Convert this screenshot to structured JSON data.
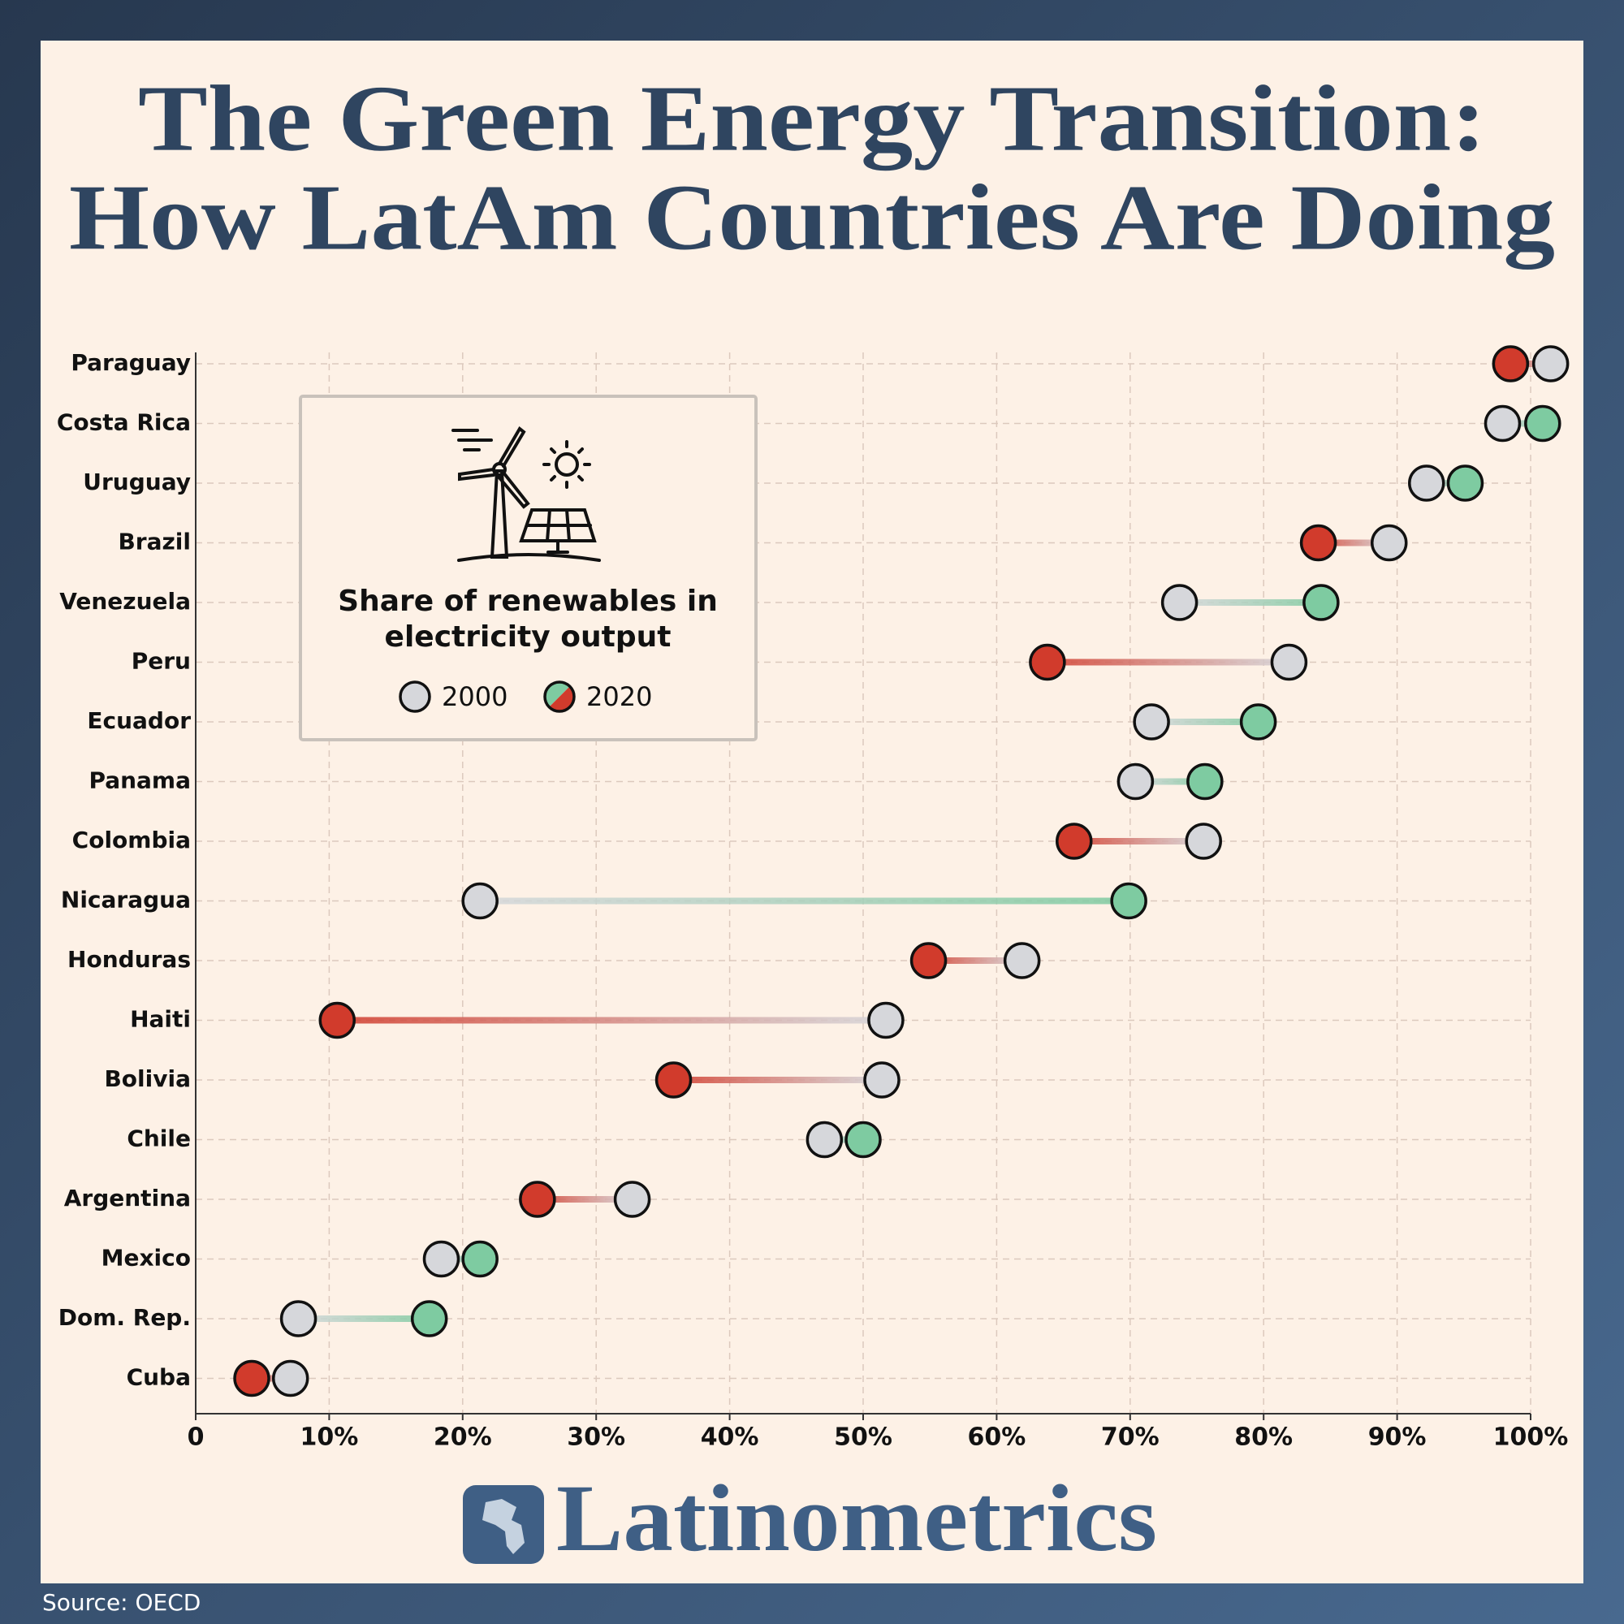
{
  "chart_data": {
    "type": "dumbbell",
    "title_lines": [
      "The Green Energy Transition:",
      "How LatAm Countries Are Doing"
    ],
    "categories": [
      "Paraguay",
      "Costa Rica",
      "Uruguay",
      "Brazil",
      "Venezuela",
      "Peru",
      "Ecuador",
      "Panama",
      "Colombia",
      "Nicaragua",
      "Honduras",
      "Haiti",
      "Bolivia",
      "Chile",
      "Argentina",
      "Mexico",
      "Dom. Rep.",
      "Cuba"
    ],
    "series": [
      {
        "name": "2000",
        "color": "#d6d7db",
        "values": [
          101.5,
          97.9,
          92.2,
          89.4,
          73.7,
          81.9,
          71.6,
          70.4,
          75.5,
          21.3,
          61.9,
          51.7,
          51.4,
          47.1,
          32.7,
          18.4,
          7.7,
          7.1
        ]
      },
      {
        "name": "2020",
        "color": "#7ecba1",
        "decline_color": "#d13b2c",
        "values": [
          98.5,
          100.9,
          95.1,
          84.1,
          84.3,
          63.8,
          79.6,
          75.6,
          65.8,
          69.9,
          54.9,
          10.6,
          35.8,
          50.0,
          25.6,
          21.3,
          17.5,
          4.2
        ]
      }
    ],
    "xlim": [
      0,
      100
    ],
    "xticks": [
      0,
      {
        "value": 10,
        "label": "10%"
      },
      {
        "value": 20,
        "label": "20%"
      },
      {
        "value": 30,
        "label": "30%"
      },
      {
        "value": 40,
        "label": "40%"
      },
      {
        "value": 50,
        "label": "50%"
      },
      {
        "value": 60,
        "label": "60%"
      },
      {
        "value": 70,
        "label": "70%"
      },
      {
        "value": 80,
        "label": "80%"
      },
      {
        "value": 90,
        "label": "90%"
      },
      {
        "value": 100,
        "label": "100%"
      }
    ],
    "grid": true,
    "legend_title": [
      "Share of renewables in",
      "electricity output"
    ],
    "brand": "Latinometrics",
    "source": "Source: OECD"
  }
}
